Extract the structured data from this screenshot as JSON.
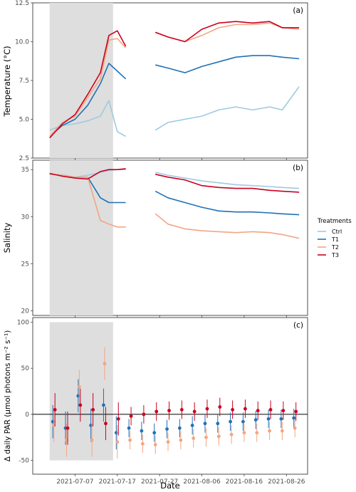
{
  "chart_data": [
    {
      "type": "line",
      "panel_label": "(a)",
      "ylabel": "Temperature (°C)",
      "ylim": [
        2.5,
        12.5
      ],
      "yticks": [
        "2.5",
        "5.0",
        "7.5",
        "10.0",
        "12.5"
      ],
      "shaded_period": [
        "2021-07-01",
        "2021-07-16"
      ],
      "x": [
        "2021-07-01",
        "2021-07-04",
        "2021-07-07",
        "2021-07-10",
        "2021-07-13",
        "2021-07-15",
        "2021-07-17",
        "2021-07-19",
        "2021-07-23",
        "2021-07-26",
        "2021-07-29",
        "2021-08-02",
        "2021-08-06",
        "2021-08-10",
        "2021-08-14",
        "2021-08-18",
        "2021-08-22",
        "2021-08-25",
        "2021-08-29"
      ],
      "series": [
        {
          "name": "Ctrl",
          "color": "#9ecae1",
          "values": [
            4.3,
            4.6,
            4.7,
            4.9,
            5.2,
            6.2,
            4.2,
            3.9,
            null,
            4.3,
            4.8,
            5.0,
            5.2,
            5.6,
            5.8,
            5.6,
            5.8,
            5.6,
            7.1
          ]
        },
        {
          "name": "T1",
          "color": "#2171b5",
          "values": [
            3.9,
            4.6,
            5.0,
            5.9,
            7.3,
            8.6,
            8.1,
            7.6,
            null,
            8.5,
            8.3,
            8.0,
            8.4,
            8.7,
            9.0,
            9.1,
            9.1,
            9.0,
            8.9
          ]
        },
        {
          "name": "T2",
          "color": "#f4a582",
          "values": [
            3.9,
            4.8,
            5.2,
            6.4,
            7.6,
            10.1,
            10.2,
            9.6,
            null,
            10.6,
            10.3,
            10.0,
            10.4,
            10.9,
            11.1,
            11.1,
            11.2,
            10.9,
            10.8
          ]
        },
        {
          "name": "T3",
          "color": "#ca0020",
          "values": [
            3.8,
            4.7,
            5.3,
            6.6,
            8.0,
            10.4,
            10.7,
            9.7,
            null,
            10.6,
            10.3,
            10.0,
            10.8,
            11.2,
            11.3,
            11.2,
            11.3,
            10.9,
            10.9
          ]
        }
      ]
    },
    {
      "type": "line",
      "panel_label": "(b)",
      "ylabel": "Salinity",
      "ylim": [
        19.5,
        36
      ],
      "yticks": [
        "20",
        "25",
        "30",
        "35"
      ],
      "shaded_period": [
        "2021-07-01",
        "2021-07-16"
      ],
      "x": [
        "2021-07-01",
        "2021-07-04",
        "2021-07-07",
        "2021-07-10",
        "2021-07-13",
        "2021-07-15",
        "2021-07-17",
        "2021-07-19",
        "2021-07-23",
        "2021-07-26",
        "2021-07-29",
        "2021-08-02",
        "2021-08-06",
        "2021-08-10",
        "2021-08-14",
        "2021-08-18",
        "2021-08-22",
        "2021-08-25",
        "2021-08-29"
      ],
      "series": [
        {
          "name": "Ctrl",
          "color": "#9ecae1",
          "values": [
            34.5,
            34.4,
            34.2,
            34.4,
            34.7,
            34.9,
            35.0,
            35.0,
            null,
            34.7,
            34.4,
            34.1,
            33.8,
            33.6,
            33.4,
            33.3,
            33.2,
            33.1,
            33.0
          ]
        },
        {
          "name": "T1",
          "color": "#2171b5",
          "values": [
            34.5,
            34.4,
            34.2,
            34.2,
            32.0,
            31.5,
            31.5,
            31.5,
            null,
            32.7,
            32.0,
            31.5,
            31.0,
            30.6,
            30.5,
            30.5,
            30.4,
            30.3,
            30.2
          ]
        },
        {
          "name": "T2",
          "color": "#f4a582",
          "values": [
            34.5,
            34.4,
            34.2,
            34.2,
            29.6,
            29.2,
            28.9,
            28.9,
            null,
            30.3,
            29.2,
            28.7,
            28.5,
            28.4,
            28.3,
            28.4,
            28.3,
            28.1,
            27.7
          ]
        },
        {
          "name": "T3",
          "color": "#ca0020",
          "values": [
            34.6,
            34.3,
            34.1,
            34.0,
            34.8,
            35.0,
            35.0,
            35.1,
            null,
            34.5,
            34.2,
            33.9,
            33.3,
            33.1,
            33.0,
            33.0,
            32.8,
            32.7,
            32.6
          ]
        }
      ]
    },
    {
      "type": "scatter",
      "panel_label": "(c)",
      "ylabel": "Δ daily PAR (µmol photons m⁻² s⁻¹)",
      "xlabel": "Date",
      "ylim": [
        -65,
        105
      ],
      "yticks": [
        "-50",
        "0",
        "50",
        "100"
      ],
      "xticks": [
        "2021-07-07",
        "2021-07-17",
        "2021-07-27",
        "2021-08-06",
        "2021-08-16",
        "2021-08-26"
      ],
      "shaded_period": [
        "2021-07-01",
        "2021-07-16"
      ],
      "shaded_y": [
        -50,
        100
      ],
      "x": [
        "2021-07-02",
        "2021-07-05",
        "2021-07-08",
        "2021-07-11",
        "2021-07-14",
        "2021-07-17",
        "2021-07-20",
        "2021-07-23",
        "2021-07-26",
        "2021-07-29",
        "2021-08-01",
        "2021-08-04",
        "2021-08-07",
        "2021-08-10",
        "2021-08-13",
        "2021-08-16",
        "2021-08-19",
        "2021-08-22",
        "2021-08-25",
        "2021-08-28"
      ],
      "series": [
        {
          "name": "T1",
          "color": "#2171b5",
          "values": [
            -8,
            -15,
            20,
            -12,
            10,
            -20,
            -15,
            -18,
            -20,
            -16,
            -15,
            -12,
            -10,
            -10,
            -8,
            -8,
            -6,
            -5,
            -5,
            -4
          ]
        },
        {
          "name": "T2",
          "color": "#f4a582",
          "values": [
            -12,
            -28,
            30,
            -28,
            55,
            -30,
            -28,
            -32,
            -33,
            -30,
            -28,
            -26,
            -25,
            -24,
            -22,
            -20,
            -20,
            -18,
            -18,
            -15
          ]
        },
        {
          "name": "T3",
          "color": "#ca0020",
          "values": [
            5,
            -15,
            10,
            5,
            -10,
            -5,
            -2,
            0,
            3,
            4,
            5,
            3,
            6,
            8,
            5,
            6,
            4,
            5,
            4,
            3
          ]
        }
      ]
    }
  ],
  "xaxis": {
    "label": "Date",
    "ticks": [
      "2021-07-07",
      "2021-07-17",
      "2021-07-27",
      "2021-08-06",
      "2021-08-16",
      "2021-08-26"
    ]
  },
  "legend": {
    "title": "Treatments",
    "placement": "right",
    "items": [
      {
        "name": "Ctrl",
        "color": "#9ecae1"
      },
      {
        "name": "T1",
        "color": "#2171b5"
      },
      {
        "name": "T2",
        "color": "#f4a582"
      },
      {
        "name": "T3",
        "color": "#ca0020"
      }
    ]
  }
}
